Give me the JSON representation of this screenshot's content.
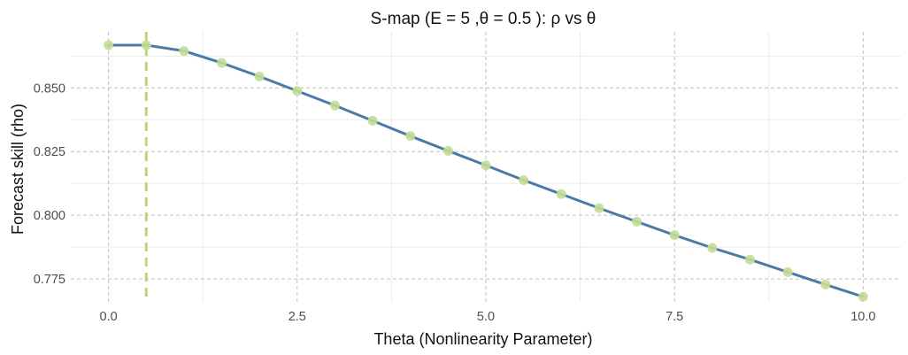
{
  "chart_data": {
    "type": "line",
    "title": "S-map (E = 5 ,θ = 0.5 ): ρ vs θ",
    "xlabel": "Theta (Nonlinearity Parameter)",
    "ylabel": "Forecast skill (rho)",
    "xlim": [
      -0.5,
      10.5
    ],
    "ylim": [
      0.766,
      0.872
    ],
    "x_ticks": [
      0,
      2.5,
      5,
      7.5,
      10
    ],
    "x_tick_labels": [
      "0.0",
      "2.5",
      "5.0",
      "7.5",
      "10.0"
    ],
    "y_ticks": [
      0.775,
      0.8,
      0.825,
      0.85
    ],
    "y_tick_labels": [
      "0.775",
      "0.800",
      "0.825",
      "0.850"
    ],
    "grid": true,
    "series": [
      {
        "x": [
          0,
          0.5,
          1,
          1.5,
          2,
          2.5,
          3,
          3.5,
          4,
          4.5,
          5,
          5.5,
          6,
          6.5,
          7,
          7.5,
          8,
          8.5,
          9,
          9.5,
          10
        ],
        "values": [
          0.8668,
          0.8668,
          0.8645,
          0.8598,
          0.8545,
          0.8488,
          0.8431,
          0.8371,
          0.8311,
          0.8253,
          0.8196,
          0.8138,
          0.8083,
          0.8028,
          0.7975,
          0.7922,
          0.7872,
          0.7826,
          0.7777,
          0.7728,
          0.768
        ],
        "line_color": "#4a7aa8",
        "point_color": "#c8dc94"
      }
    ],
    "reference_line": {
      "axis": "x",
      "value": 0.5,
      "color": "#b8d67a"
    }
  }
}
